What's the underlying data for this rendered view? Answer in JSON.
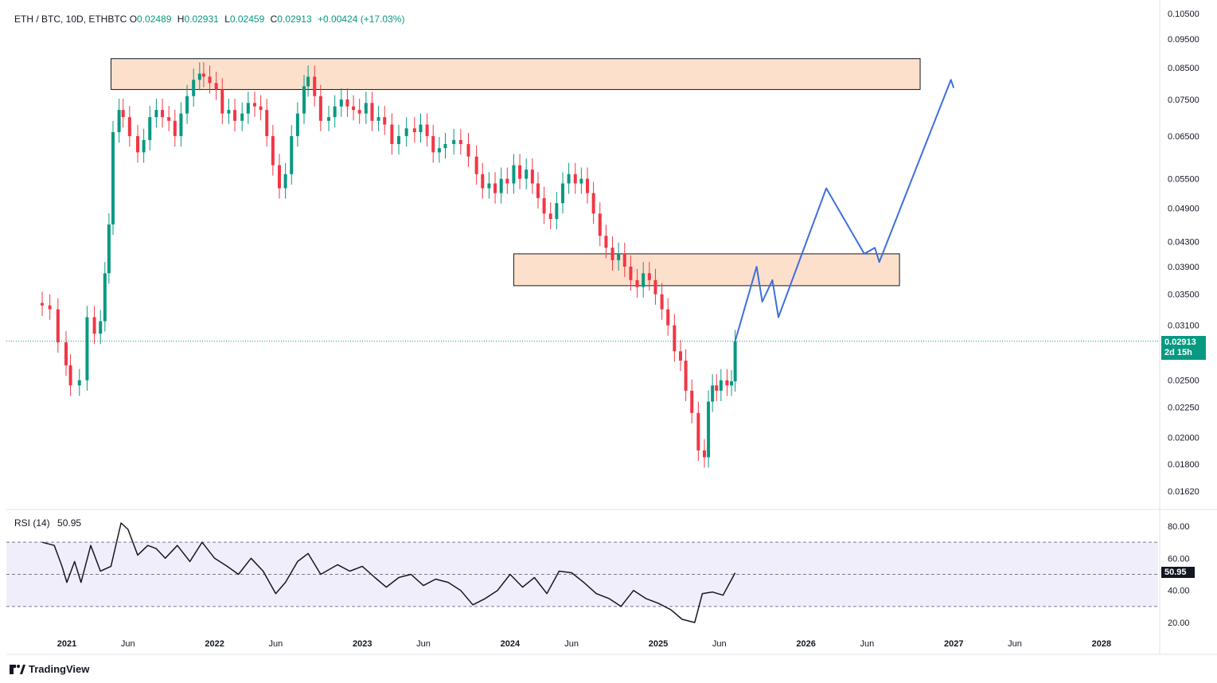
{
  "header": {
    "symbol": "ETH / BTC, 10D, ETHBTC",
    "open_label": "O",
    "open": "0.02489",
    "high_label": "H",
    "high": "0.02931",
    "low_label": "L",
    "low": "0.02459",
    "close_label": "C",
    "close": "0.02913",
    "change": "+0.00424 (+17.03%)"
  },
  "price_tag": {
    "value": "0.02913",
    "countdown": "2d 15h"
  },
  "rsi": {
    "label": "RSI (14)",
    "value": "50.95"
  },
  "brand": {
    "name": "TradingView"
  },
  "colors": {
    "up": "#089981",
    "down": "#f23645",
    "zone": "#fde0cc",
    "path": "#3d6fdb",
    "rsi_line": "#131722",
    "rsi_band": "#f1eefb"
  },
  "chart_data": [
    {
      "type": "candlestick",
      "title": "ETH / BTC, 10D, ETHBTC",
      "y_scale": "log",
      "y_ticks": [
        "0.10500",
        "0.09500",
        "0.08500",
        "0.07500",
        "0.06500",
        "0.05500",
        "0.04900",
        "0.04300",
        "0.03900",
        "0.03500",
        "0.03100",
        "0.02500",
        "0.02250",
        "0.02000",
        "0.01800",
        "0.01620"
      ],
      "x_ticks": [
        "2021",
        "Jun",
        "2022",
        "Jun",
        "2023",
        "Jun",
        "2024",
        "Jun",
        "2025",
        "Jun",
        "2026",
        "Jun",
        "2027",
        "Jun",
        "2028"
      ],
      "ylim": [
        0.0152,
        0.107
      ],
      "close_series": [
        [
          "2020-11-01",
          0.0335
        ],
        [
          "2020-11-20",
          0.033
        ],
        [
          "2020-12-10",
          0.029
        ],
        [
          "2020-12-30",
          0.0265
        ],
        [
          "2021-01-10",
          0.0245
        ],
        [
          "2021-02-01",
          0.025
        ],
        [
          "2021-02-20",
          0.032
        ],
        [
          "2021-03-10",
          0.03
        ],
        [
          "2021-03-25",
          0.0315
        ],
        [
          "2021-04-05",
          0.038
        ],
        [
          "2021-04-15",
          0.046
        ],
        [
          "2021-04-25",
          0.066
        ],
        [
          "2021-05-10",
          0.072
        ],
        [
          "2021-05-20",
          0.07
        ],
        [
          "2021-06-05",
          0.065
        ],
        [
          "2021-06-25",
          0.061
        ],
        [
          "2021-07-10",
          0.064
        ],
        [
          "2021-07-25",
          0.07
        ],
        [
          "2021-08-10",
          0.072
        ],
        [
          "2021-08-25",
          0.07
        ],
        [
          "2021-09-10",
          0.069
        ],
        [
          "2021-09-25",
          0.065
        ],
        [
          "2021-10-10",
          0.071
        ],
        [
          "2021-10-25",
          0.076
        ],
        [
          "2021-11-10",
          0.081
        ],
        [
          "2021-11-25",
          0.083
        ],
        [
          "2021-12-05",
          0.082
        ],
        [
          "2021-12-20",
          0.08
        ],
        [
          "2022-01-05",
          0.078
        ],
        [
          "2022-01-20",
          0.071
        ],
        [
          "2022-02-05",
          0.072
        ],
        [
          "2022-02-20",
          0.069
        ],
        [
          "2022-03-10",
          0.071
        ],
        [
          "2022-03-25",
          0.074
        ],
        [
          "2022-04-10",
          0.073
        ],
        [
          "2022-04-25",
          0.072
        ],
        [
          "2022-05-10",
          0.065
        ],
        [
          "2022-05-25",
          0.058
        ],
        [
          "2022-06-10",
          0.053
        ],
        [
          "2022-06-25",
          0.056
        ],
        [
          "2022-07-10",
          0.065
        ],
        [
          "2022-07-25",
          0.071
        ],
        [
          "2022-08-10",
          0.079
        ],
        [
          "2022-08-20",
          0.082
        ],
        [
          "2022-09-05",
          0.076
        ],
        [
          "2022-09-20",
          0.069
        ],
        [
          "2022-10-10",
          0.07
        ],
        [
          "2022-10-25",
          0.073
        ],
        [
          "2022-11-10",
          0.075
        ],
        [
          "2022-11-25",
          0.073
        ],
        [
          "2022-12-10",
          0.072
        ],
        [
          "2022-12-25",
          0.071
        ],
        [
          "2023-01-10",
          0.074
        ],
        [
          "2023-01-25",
          0.069
        ],
        [
          "2023-02-10",
          0.07
        ],
        [
          "2023-02-25",
          0.068
        ],
        [
          "2023-03-15",
          0.063
        ],
        [
          "2023-04-01",
          0.065
        ],
        [
          "2023-04-20",
          0.067
        ],
        [
          "2023-05-10",
          0.066
        ],
        [
          "2023-05-25",
          0.068
        ],
        [
          "2023-06-10",
          0.065
        ],
        [
          "2023-06-25",
          0.061
        ],
        [
          "2023-07-10",
          0.062
        ],
        [
          "2023-07-25",
          0.063
        ],
        [
          "2023-08-15",
          0.064
        ],
        [
          "2023-09-01",
          0.063
        ],
        [
          "2023-09-20",
          0.06
        ],
        [
          "2023-10-10",
          0.056
        ],
        [
          "2023-10-25",
          0.053
        ],
        [
          "2023-11-10",
          0.054
        ],
        [
          "2023-11-25",
          0.052
        ],
        [
          "2023-12-10",
          0.055
        ],
        [
          "2023-12-25",
          0.054
        ],
        [
          "2024-01-10",
          0.058
        ],
        [
          "2024-01-25",
          0.055
        ],
        [
          "2024-02-10",
          0.057
        ],
        [
          "2024-02-25",
          0.054
        ],
        [
          "2024-03-10",
          0.051
        ],
        [
          "2024-03-25",
          0.048
        ],
        [
          "2024-04-10",
          0.047
        ],
        [
          "2024-04-25",
          0.05
        ],
        [
          "2024-05-10",
          0.054
        ],
        [
          "2024-05-25",
          0.056
        ],
        [
          "2024-06-10",
          0.054
        ],
        [
          "2024-06-25",
          0.055
        ],
        [
          "2024-07-10",
          0.052
        ],
        [
          "2024-07-25",
          0.048
        ],
        [
          "2024-08-10",
          0.044
        ],
        [
          "2024-08-25",
          0.042
        ],
        [
          "2024-09-10",
          0.04
        ],
        [
          "2024-09-25",
          0.041
        ],
        [
          "2024-10-10",
          0.039
        ],
        [
          "2024-10-25",
          0.037
        ],
        [
          "2024-11-10",
          0.036
        ],
        [
          "2024-11-25",
          0.038
        ],
        [
          "2024-12-10",
          0.037
        ],
        [
          "2024-12-25",
          0.035
        ],
        [
          "2025-01-10",
          0.033
        ],
        [
          "2025-01-25",
          0.031
        ],
        [
          "2025-02-10",
          0.028
        ],
        [
          "2025-02-25",
          0.027
        ],
        [
          "2025-03-10",
          0.024
        ],
        [
          "2025-03-25",
          0.022
        ],
        [
          "2025-04-10",
          0.019
        ],
        [
          "2025-04-25",
          0.0185
        ],
        [
          "2025-05-05",
          0.023
        ],
        [
          "2025-05-15",
          0.0245
        ],
        [
          "2025-05-25",
          0.024
        ],
        [
          "2025-06-05",
          0.025
        ],
        [
          "2025-06-20",
          0.0245
        ],
        [
          "2025-07-01",
          0.0249
        ],
        [
          "2025-07-10",
          0.02913
        ]
      ],
      "resistance_zone": {
        "top": 0.088,
        "bottom": 0.078,
        "from": "2021-04-20",
        "to": "2026-10-10"
      },
      "support_zone": {
        "top": 0.041,
        "bottom": 0.0362,
        "from": "2024-01-10",
        "to": "2026-08-20"
      },
      "projection_path": [
        [
          "2025-07-10",
          0.02913
        ],
        [
          "2025-09-01",
          0.039
        ],
        [
          "2025-09-15",
          0.034
        ],
        [
          "2025-10-10",
          0.037
        ],
        [
          "2025-10-25",
          0.032
        ],
        [
          "2026-02-20",
          0.053
        ],
        [
          "2026-05-25",
          0.041
        ],
        [
          "2026-06-20",
          0.042
        ],
        [
          "2026-07-01",
          0.0397
        ],
        [
          "2026-12-25",
          0.081
        ],
        [
          "2027-01-01",
          0.0785
        ]
      ],
      "last_price": 0.02913
    },
    {
      "type": "line",
      "title": "RSI (14)",
      "y_ticks": [
        "80.00",
        "60.00",
        "40.00",
        "20.00"
      ],
      "ylim": [
        18,
        84
      ],
      "bands": [
        70,
        50,
        30
      ],
      "series": [
        {
          "name": "RSI (14)",
          "values": [
            [
              "2020-11-01",
              70
            ],
            [
              "2020-12-01",
              68
            ],
            [
              "2020-12-20",
              55
            ],
            [
              "2021-01-01",
              45
            ],
            [
              "2021-01-20",
              58
            ],
            [
              "2021-02-05",
              45
            ],
            [
              "2021-03-01",
              68
            ],
            [
              "2021-03-25",
              52
            ],
            [
              "2021-04-20",
              55
            ],
            [
              "2021-05-15",
              82
            ],
            [
              "2021-06-01",
              78
            ],
            [
              "2021-06-25",
              62
            ],
            [
              "2021-07-20",
              68
            ],
            [
              "2021-08-10",
              66
            ],
            [
              "2021-09-01",
              60
            ],
            [
              "2021-10-01",
              68
            ],
            [
              "2021-11-01",
              58
            ],
            [
              "2021-12-01",
              70
            ],
            [
              "2022-01-01",
              60
            ],
            [
              "2022-02-01",
              55
            ],
            [
              "2022-03-01",
              50
            ],
            [
              "2022-04-01",
              60
            ],
            [
              "2022-05-01",
              52
            ],
            [
              "2022-06-01",
              38
            ],
            [
              "2022-06-25",
              45
            ],
            [
              "2022-07-25",
              58
            ],
            [
              "2022-08-20",
              63
            ],
            [
              "2022-09-20",
              50
            ],
            [
              "2022-11-01",
              56
            ],
            [
              "2022-12-01",
              52
            ],
            [
              "2023-01-01",
              55
            ],
            [
              "2023-02-01",
              48
            ],
            [
              "2023-03-01",
              42
            ],
            [
              "2023-04-01",
              48
            ],
            [
              "2023-05-01",
              50
            ],
            [
              "2023-06-01",
              43
            ],
            [
              "2023-07-01",
              47
            ],
            [
              "2023-08-01",
              45
            ],
            [
              "2023-09-01",
              40
            ],
            [
              "2023-10-01",
              31
            ],
            [
              "2023-11-01",
              35
            ],
            [
              "2023-12-01",
              40
            ],
            [
              "2024-01-01",
              50
            ],
            [
              "2024-02-01",
              42
            ],
            [
              "2024-03-01",
              48
            ],
            [
              "2024-04-01",
              38
            ],
            [
              "2024-05-01",
              52
            ],
            [
              "2024-06-01",
              51
            ],
            [
              "2024-07-01",
              45
            ],
            [
              "2024-08-01",
              38
            ],
            [
              "2024-09-01",
              35
            ],
            [
              "2024-10-01",
              30
            ],
            [
              "2024-11-01",
              40
            ],
            [
              "2024-12-01",
              35
            ],
            [
              "2025-01-01",
              32
            ],
            [
              "2025-02-01",
              28
            ],
            [
              "2025-03-01",
              22
            ],
            [
              "2025-04-01",
              20
            ],
            [
              "2025-04-20",
              38
            ],
            [
              "2025-05-15",
              39
            ],
            [
              "2025-06-10",
              37
            ],
            [
              "2025-07-10",
              50.95
            ]
          ]
        }
      ]
    }
  ]
}
